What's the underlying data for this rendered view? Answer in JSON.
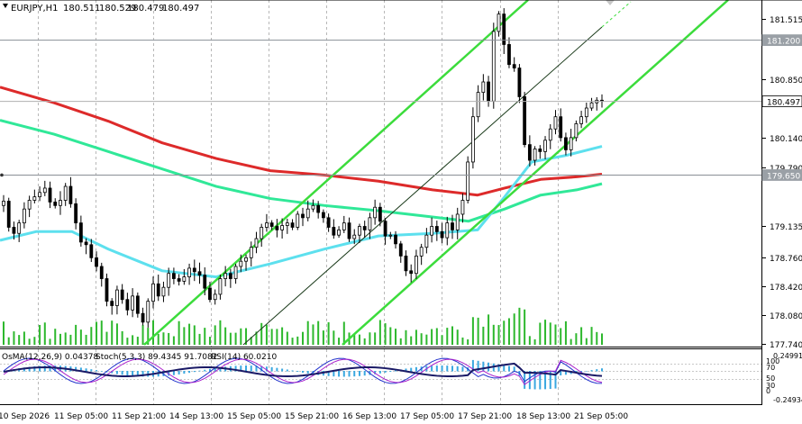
{
  "chart_data": {
    "type": "candlestick",
    "header": {
      "symbol_label": "EURJPY,H1",
      "open": "180.511",
      "high": "180.529",
      "low": "180.479",
      "close": "180.497"
    },
    "y_ticks": [
      "181.515",
      "180.850",
      "180.140",
      "179.790",
      "179.135",
      "178.760",
      "178.420",
      "178.080",
      "177.740"
    ],
    "x_ticks": [
      "10 Sep 2026",
      "11 Sep 05:00",
      "11 Sep 21:00",
      "14 Sep 13:00",
      "15 Sep 05:00",
      "15 Sep 21:00",
      "16 Sep 13:00",
      "17 Sep 05:00",
      "17 Sep 21:00",
      "18 Sep 13:00",
      "21 Sep 05:00"
    ],
    "ylim": [
      177.7,
      181.62
    ],
    "price_tags": [
      {
        "label": "181.200",
        "value": 181.2,
        "bg": "#9aa0a6",
        "color": "#ffffff"
      },
      {
        "label": "180.497",
        "value": 180.497,
        "bg": "#ffffff",
        "color": "#000000"
      },
      {
        "label": "179.650",
        "value": 179.65,
        "bg": "#9aa0a6",
        "color": "#ffffff"
      }
    ],
    "h_levels": [
      181.2,
      179.65
    ],
    "close_price": 180.497,
    "close_series": [
      179.35,
      179.05,
      178.98,
      179.1,
      179.26,
      179.36,
      179.4,
      179.45,
      179.5,
      179.34,
      179.3,
      179.36,
      179.52,
      179.32,
      179.1,
      178.88,
      178.85,
      178.7,
      178.6,
      178.46,
      178.2,
      178.15,
      178.33,
      178.22,
      178.1,
      178.26,
      178.06,
      177.96,
      178.2,
      178.4,
      178.26,
      178.36,
      178.52,
      178.46,
      178.43,
      178.48,
      178.58,
      178.54,
      178.5,
      178.35,
      178.22,
      178.28,
      178.46,
      178.52,
      178.46,
      178.6,
      178.66,
      178.7,
      178.82,
      178.92,
      179.05,
      179.1,
      179.06,
      179.02,
      179.07,
      179.1,
      179.05,
      179.2,
      179.16,
      179.26,
      179.3,
      179.22,
      179.16,
      179.05,
      178.96,
      179.02,
      179.1,
      178.92,
      178.96,
      179.06,
      179.02,
      179.16,
      179.28,
      179.12,
      178.95,
      178.96,
      178.86,
      178.72,
      178.55,
      178.52,
      178.72,
      178.82,
      178.96,
      179.06,
      179.0,
      178.93,
      179.1,
      179.02,
      179.2,
      179.36,
      179.8,
      180.32,
      180.6,
      180.72,
      180.5,
      181.3,
      181.5,
      181.15,
      180.92,
      180.88,
      180.55,
      180.0,
      179.82,
      179.95,
      179.92,
      180.05,
      180.18,
      180.32,
      180.08,
      179.94,
      180.08,
      180.24,
      180.32,
      180.42,
      180.48,
      180.51,
      180.5
    ],
    "indicators": {
      "osma_label": "OsMA(12,26,9) 0.04378",
      "stoch_label": "Stoch(5,3,3) 89.4345 91.7082",
      "rsi_label": "RSI(14) 60.0210",
      "right_labels": [
        "0.24991",
        "100",
        "70",
        "50",
        "30",
        "0",
        "-0.24934"
      ]
    },
    "colors": {
      "channel": "#3cdc3c",
      "ma200": "#dd2a2a",
      "ma144": "#30e898",
      "ma50": "#5de0ee",
      "candle": "#000000",
      "volume": "#2db82d",
      "osma": "#3aa8e0",
      "stoch_main": "#2233cc",
      "stoch_signal": "#aa22cc",
      "rsi": "#1a1a66"
    }
  }
}
